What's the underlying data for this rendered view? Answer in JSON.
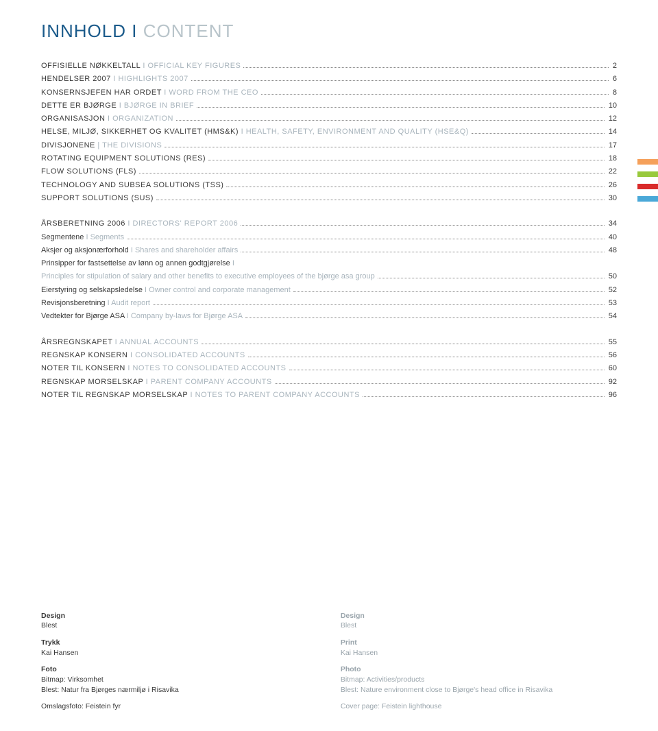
{
  "title": {
    "primary": "INNHOLD",
    "separator": " I ",
    "secondary": "CONTENT"
  },
  "bars": [
    {
      "color": "#f5a05a"
    },
    {
      "color": "#98c93c"
    },
    {
      "color": "#d92a2a"
    },
    {
      "color": "#4aa8d8"
    }
  ],
  "toc": [
    {
      "type": "entry",
      "primary": "OFFISIELLE NØKKELTALL",
      "secondary": "OFFICIAL KEY FIGURES",
      "page": "2",
      "style": "upper"
    },
    {
      "type": "entry",
      "primary": "HENDELSER 2007",
      "secondary": "HIGHLIGHTS 2007",
      "page": "6",
      "style": "upper"
    },
    {
      "type": "entry",
      "primary": "KONSERNSJEFEN HAR ORDET",
      "secondary": "WORD FROM THE CEO",
      "page": "8",
      "style": "upper"
    },
    {
      "type": "entry",
      "primary": "DETTE ER BJØRGE",
      "secondary": "BJØRGE IN BRIEF",
      "page": "10",
      "style": "upper"
    },
    {
      "type": "entry",
      "primary": "ORGANISASJON",
      "secondary": "ORGANIZATION",
      "page": "12",
      "style": "upper"
    },
    {
      "type": "entry",
      "primary": "HELSE, MILJØ, SIKKERHET OG KVALITET (HMS&K)",
      "secondary": "HEALTH, SAFETY, ENVIRONMENT AND QUALITY (HSE&Q)",
      "page": "14",
      "style": "upper"
    },
    {
      "type": "entry",
      "primary": "DIVISJONENE",
      "secondary": "THE DIVISIONS",
      "page": "17",
      "style": "upper",
      "sep": " | "
    },
    {
      "type": "entry",
      "primary": "ROTATING EQUIPMENT SOLUTIONS (RES)",
      "secondary": "",
      "page": "18",
      "style": "upper"
    },
    {
      "type": "entry",
      "primary": "FLOW SOLUTIONS (FLS)",
      "secondary": "",
      "page": "22",
      "style": "upper"
    },
    {
      "type": "entry",
      "primary": "TECHNOLOGY AND SUBSEA SOLUTIONS (TSS)",
      "secondary": "",
      "page": "26",
      "style": "upper"
    },
    {
      "type": "entry",
      "primary": "SUPPORT SOLUTIONS (SUS)",
      "secondary": "",
      "page": "30",
      "style": "upper"
    },
    {
      "type": "gap"
    },
    {
      "type": "entry",
      "primary": "ÅRSBERETNING 2006",
      "secondary": "DIRECTORS' REPORT 2006",
      "page": "34",
      "style": "upper"
    },
    {
      "type": "entry",
      "primary": "Segmentene",
      "secondary": "Segments",
      "page": "40",
      "style": "mixed"
    },
    {
      "type": "entry",
      "primary": "Aksjer og aksjonærforhold",
      "secondary": "Shares and shareholder affairs",
      "page": "48",
      "style": "mixed"
    },
    {
      "type": "entry",
      "primary": "Prinsipper for fastsettelse av lønn og annen godtgjørelse",
      "secondary": "",
      "page": "",
      "style": "mixed",
      "nodots": true
    },
    {
      "type": "entry",
      "primary": "",
      "secondary": "Principles for stipulation of salary and other benefits to executive employees of the bjørge asa group",
      "page": "50",
      "style": "mixed"
    },
    {
      "type": "entry",
      "primary": "Eierstyring og selskapsledelse",
      "secondary": "Owner control and corporate management",
      "page": "52",
      "style": "mixed"
    },
    {
      "type": "entry",
      "primary": "Revisjonsberetning",
      "secondary": "Audit report",
      "page": "53",
      "style": "mixed"
    },
    {
      "type": "entry",
      "primary": "Vedtekter for Bjørge ASA",
      "secondary": "Company by-laws for Bjørge ASA",
      "page": "54",
      "style": "mixed"
    },
    {
      "type": "gap"
    },
    {
      "type": "entry",
      "primary": "ÅRSREGNSKAPET",
      "secondary": "ANNUAL ACCOUNTS",
      "page": "55",
      "style": "upper"
    },
    {
      "type": "entry",
      "primary": "REGNSKAP KONSERN",
      "secondary": "CONSOLIDATED ACCOUNTS",
      "page": "56",
      "style": "upper"
    },
    {
      "type": "entry",
      "primary": "NOTER TIL KONSERN",
      "secondary": "NOTES TO CONSOLIDATED ACCOUNTS",
      "page": "60",
      "style": "upper"
    },
    {
      "type": "entry",
      "primary": "REGNSKAP MORSELSKAP",
      "secondary": "PARENT COMPANY ACCOUNTS",
      "page": "92",
      "style": "upper"
    },
    {
      "type": "entry",
      "primary": "NOTER TIL REGNSKAP MORSELSKAP",
      "secondary": "NOTES TO PARENT COMPANY ACCOUNTS",
      "page": "96",
      "style": "upper"
    }
  ],
  "credits": {
    "left": [
      {
        "head": "Design",
        "val": "Blest"
      },
      {
        "head": "Trykk",
        "val": "Kai Hansen"
      },
      {
        "head": "Foto",
        "val": "Bitmap: Virksomhet",
        "val2": "Blest: Natur fra Bjørges nærmiljø i Risavika"
      },
      {
        "head": "",
        "val": "Omslagsfoto: Feistein fyr"
      }
    ],
    "right": [
      {
        "head": "Design",
        "val": "Blest"
      },
      {
        "head": "Print",
        "val": "Kai Hansen"
      },
      {
        "head": "Photo",
        "val": "Bitmap: Activities/products",
        "val2": "Blest: Nature environment close to Bjørge's head office in Risavika"
      },
      {
        "head": "",
        "val": "Cover page: Feistein lighthouse"
      }
    ]
  }
}
